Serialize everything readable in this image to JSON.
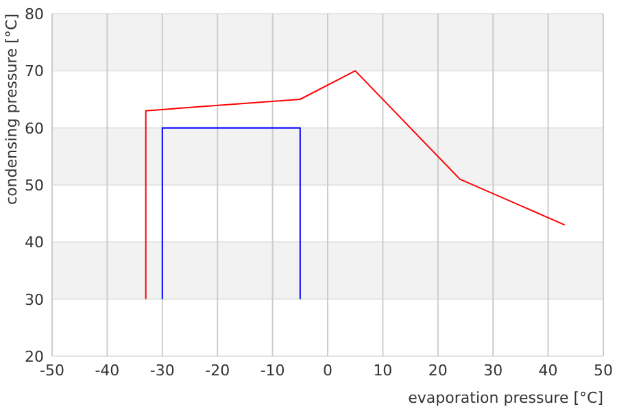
{
  "chart_data": {
    "type": "line",
    "xlabel": "evaporation pressure [°C]",
    "ylabel": "condensing pressure [°C]",
    "xlim": [
      -50,
      50
    ],
    "xticks": [
      -50,
      -40,
      -30,
      -20,
      -10,
      0,
      10,
      20,
      30,
      40,
      50
    ],
    "ylim": [
      20,
      80
    ],
    "yticks": [
      20,
      30,
      40,
      50,
      60,
      70,
      80
    ],
    "grid": true,
    "marker": "none",
    "line_style": "solid",
    "series": [
      {
        "color": "#ff0000",
        "x": [
          -33,
          -33,
          -5,
          5,
          24,
          43
        ],
        "values": [
          30,
          63,
          65,
          70,
          51,
          43
        ]
      },
      {
        "color": "#0000ff",
        "x": [
          -30,
          -30,
          -5,
          -5
        ],
        "values": [
          30,
          60,
          60,
          30
        ]
      }
    ]
  }
}
